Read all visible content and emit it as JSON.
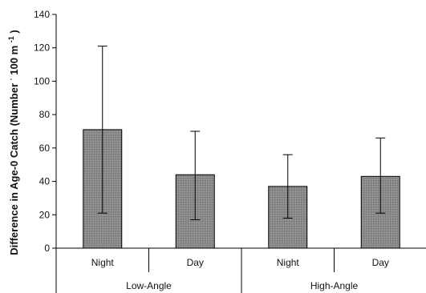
{
  "chart_data": {
    "type": "bar",
    "ylabel": {
      "prefix": "Difference in Age-0 Catch (Number ",
      "sup1": "·",
      "mid": "100 m",
      "sup2": "-1",
      "suffix": ")"
    },
    "ylim": [
      0,
      140
    ],
    "yticks": [
      0,
      20,
      40,
      60,
      80,
      100,
      120,
      140
    ],
    "grid": false,
    "legend": "none",
    "categories": [
      "Night",
      "Day",
      "Night",
      "Day"
    ],
    "groups": [
      {
        "label": "Low-Angle",
        "members": [
          0,
          1
        ]
      },
      {
        "label": "High-Angle",
        "members": [
          2,
          3
        ]
      }
    ],
    "values": [
      71,
      44,
      37,
      43
    ],
    "errors": [
      {
        "low": 21,
        "high": 121
      },
      {
        "low": 17,
        "high": 70
      },
      {
        "low": 18,
        "high": 56
      },
      {
        "low": 21,
        "high": 66
      }
    ],
    "colors": {
      "bar_fill": "#8c8c8c",
      "bar_stroke": "#000000",
      "axis": "#000000"
    }
  }
}
